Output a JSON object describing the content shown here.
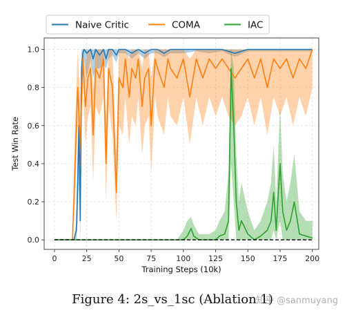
{
  "chart_data": {
    "type": "line",
    "title": "",
    "xlabel": "Training Steps (10k)",
    "ylabel": "Test Win Rate",
    "xlim": [
      -8,
      205
    ],
    "ylim": [
      -0.05,
      1.06
    ],
    "x_ticks": [
      0,
      25,
      50,
      75,
      100,
      125,
      150,
      175,
      200
    ],
    "x_tick_labels": [
      "0",
      "25",
      "50",
      "75",
      "100",
      "125",
      "150",
      "175",
      "200"
    ],
    "y_ticks": [
      0.0,
      0.2,
      0.4,
      0.6,
      0.8,
      1.0
    ],
    "y_tick_labels": [
      "0.0",
      "0.2",
      "0.4",
      "0.6",
      "0.8",
      "1.0"
    ],
    "grid": true,
    "legend_position": "top (outside, above plot)",
    "baseline": {
      "y": 0.0,
      "style": "dashed",
      "color": "#000000"
    },
    "series": [
      {
        "name": "Naive Critic",
        "color": "#1f77b4",
        "x": [
          0,
          15,
          17,
          18,
          19,
          20,
          21,
          22,
          23,
          25,
          28,
          30,
          32,
          35,
          38,
          40,
          42,
          45,
          48,
          50,
          55,
          60,
          65,
          70,
          75,
          80,
          85,
          90,
          100,
          110,
          120,
          130,
          140,
          150,
          160,
          170,
          180,
          190,
          200
        ],
        "mean": [
          0.0,
          0.0,
          0.05,
          0.3,
          0.6,
          0.1,
          0.9,
          0.98,
          1.0,
          0.98,
          1.0,
          0.95,
          1.0,
          0.97,
          1.0,
          0.95,
          1.0,
          1.0,
          0.97,
          1.0,
          1.0,
          0.98,
          1.0,
          0.98,
          1.0,
          1.0,
          0.98,
          1.0,
          1.0,
          1.0,
          1.0,
          1.0,
          0.98,
          1.0,
          1.0,
          1.0,
          1.0,
          1.0,
          1.0
        ],
        "lower": [
          0.0,
          0.0,
          0.0,
          0.1,
          0.3,
          0.0,
          0.7,
          0.85,
          0.95,
          0.85,
          0.95,
          0.85,
          0.9,
          0.9,
          0.92,
          0.9,
          0.95,
          0.97,
          0.93,
          0.98,
          0.98,
          0.95,
          0.98,
          0.95,
          0.98,
          0.98,
          0.96,
          0.98,
          0.98,
          0.99,
          0.98,
          0.99,
          0.96,
          0.99,
          0.99,
          0.99,
          0.99,
          0.99,
          0.99
        ],
        "upper": [
          0.0,
          0.0,
          0.1,
          0.5,
          0.8,
          0.3,
          1.0,
          1.0,
          1.0,
          1.0,
          1.0,
          1.0,
          1.0,
          1.0,
          1.0,
          1.0,
          1.0,
          1.0,
          1.0,
          1.0,
          1.0,
          1.0,
          1.0,
          1.0,
          1.0,
          1.0,
          1.0,
          1.0,
          1.0,
          1.0,
          1.0,
          1.0,
          1.0,
          1.0,
          1.0,
          1.0,
          1.0,
          1.0,
          1.0
        ]
      },
      {
        "name": "COMA",
        "color": "#ff7f0e",
        "x": [
          0,
          14,
          16,
          18,
          20,
          22,
          24,
          26,
          28,
          30,
          32,
          35,
          38,
          40,
          42,
          45,
          48,
          50,
          53,
          55,
          58,
          60,
          63,
          65,
          68,
          70,
          73,
          75,
          78,
          80,
          85,
          88,
          90,
          95,
          100,
          105,
          110,
          115,
          120,
          125,
          130,
          135,
          140,
          145,
          150,
          155,
          160,
          165,
          170,
          175,
          180,
          185,
          190,
          195,
          200
        ],
        "mean": [
          0.0,
          0.0,
          0.4,
          0.8,
          0.5,
          0.95,
          0.7,
          0.85,
          0.9,
          0.55,
          0.9,
          0.85,
          0.95,
          0.4,
          0.9,
          0.8,
          0.25,
          0.85,
          0.8,
          0.95,
          0.75,
          0.9,
          0.85,
          0.95,
          0.7,
          0.85,
          0.9,
          0.6,
          0.95,
          0.9,
          0.8,
          0.95,
          0.9,
          0.85,
          0.95,
          0.75,
          0.95,
          0.85,
          0.95,
          0.9,
          0.95,
          0.9,
          0.85,
          0.9,
          0.95,
          0.85,
          0.95,
          0.8,
          0.95,
          0.9,
          0.95,
          0.85,
          0.95,
          0.9,
          1.0
        ],
        "lower": [
          0.0,
          0.0,
          0.2,
          0.6,
          0.3,
          0.8,
          0.5,
          0.65,
          0.7,
          0.3,
          0.7,
          0.65,
          0.75,
          0.2,
          0.7,
          0.55,
          0.1,
          0.6,
          0.55,
          0.75,
          0.5,
          0.65,
          0.6,
          0.75,
          0.45,
          0.6,
          0.65,
          0.35,
          0.75,
          0.65,
          0.55,
          0.75,
          0.65,
          0.6,
          0.75,
          0.5,
          0.75,
          0.6,
          0.75,
          0.65,
          0.75,
          0.65,
          0.6,
          0.65,
          0.75,
          0.6,
          0.75,
          0.55,
          0.75,
          0.65,
          0.75,
          0.6,
          0.75,
          0.65,
          0.8
        ],
        "upper": [
          0.0,
          0.0,
          0.6,
          1.0,
          0.75,
          1.0,
          0.9,
          1.0,
          1.0,
          0.8,
          1.0,
          1.0,
          1.0,
          0.65,
          1.0,
          1.0,
          0.45,
          1.0,
          1.0,
          1.0,
          0.95,
          1.0,
          1.0,
          1.0,
          0.9,
          1.0,
          1.0,
          0.85,
          1.0,
          1.0,
          1.0,
          1.0,
          1.0,
          1.0,
          1.0,
          0.95,
          1.0,
          1.0,
          1.0,
          1.0,
          1.0,
          1.0,
          1.0,
          1.0,
          1.0,
          1.0,
          1.0,
          1.0,
          1.0,
          1.0,
          1.0,
          1.0,
          1.0,
          1.0,
          1.0
        ]
      },
      {
        "name": "IAC",
        "color": "#2ca02c",
        "x": [
          0,
          90,
          95,
          100,
          103,
          106,
          108,
          112,
          120,
          125,
          128,
          132,
          135,
          137,
          139,
          141,
          143,
          145,
          150,
          155,
          160,
          165,
          168,
          170,
          172,
          175,
          177,
          180,
          183,
          186,
          190,
          195,
          200
        ],
        "mean": [
          0.0,
          0.0,
          0.0,
          0.0,
          0.02,
          0.06,
          0.02,
          0.0,
          0.0,
          0.0,
          0.02,
          0.03,
          0.1,
          0.9,
          0.6,
          0.2,
          0.05,
          0.1,
          0.03,
          0.0,
          0.02,
          0.05,
          0.1,
          0.25,
          0.05,
          0.4,
          0.15,
          0.05,
          0.1,
          0.2,
          0.03,
          0.02,
          0.01
        ],
        "lower": [
          0.0,
          0.0,
          0.0,
          0.0,
          0.0,
          0.0,
          0.0,
          0.0,
          0.0,
          0.0,
          0.0,
          0.0,
          0.0,
          0.4,
          0.2,
          0.0,
          0.0,
          0.0,
          0.0,
          0.0,
          0.0,
          0.0,
          0.0,
          0.05,
          0.0,
          0.1,
          0.0,
          0.0,
          0.0,
          0.0,
          0.0,
          0.0,
          0.0
        ],
        "upper": [
          0.0,
          0.0,
          0.0,
          0.05,
          0.1,
          0.12,
          0.08,
          0.03,
          0.03,
          0.05,
          0.1,
          0.15,
          0.35,
          1.0,
          0.9,
          0.45,
          0.2,
          0.3,
          0.15,
          0.05,
          0.1,
          0.2,
          0.3,
          0.5,
          0.2,
          0.7,
          0.35,
          0.2,
          0.3,
          0.45,
          0.15,
          0.1,
          0.1
        ]
      }
    ]
  },
  "caption": "Figure 4: 2s_vs_1sc (Ablation 1)",
  "watermark": "知乎 @sanmuyang"
}
